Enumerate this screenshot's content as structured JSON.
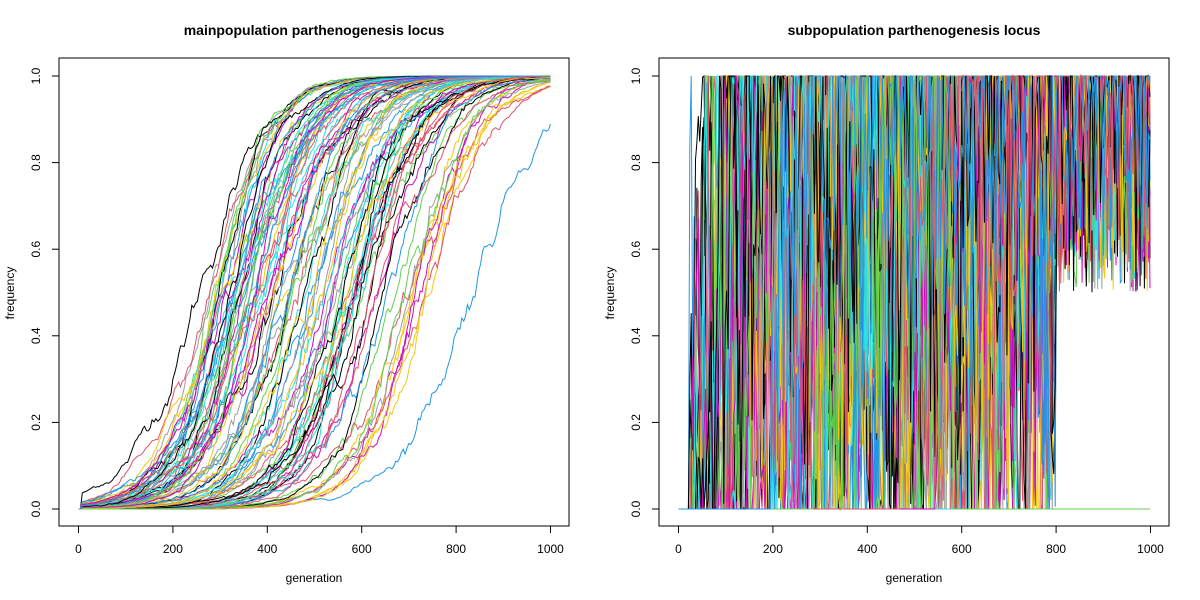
{
  "colors": [
    "#000000",
    "#DF536B",
    "#61D04F",
    "#2297E6",
    "#28E2E5",
    "#CD0BBC",
    "#F5C710",
    "#9E9E9E"
  ],
  "chart_data": [
    {
      "type": "line",
      "title": "mainpopulation parthenogenesis locus",
      "xlabel": "generation",
      "ylabel": "frequency",
      "xlim": [
        0,
        1000
      ],
      "ylim": [
        0.0,
        1.0
      ],
      "xticks": [
        "0",
        "200",
        "400",
        "600",
        "800",
        "1000"
      ],
      "yticks": [
        "0.0",
        "0.2",
        "0.4",
        "0.6",
        "0.8",
        "1.0"
      ],
      "grid": false,
      "legend": "none",
      "n_series": 100,
      "series_model": "logistic sweep from 0 to 1, midpoints spread between ~250 and ~900",
      "series": [
        {
          "x": [
            0,
            100,
            200,
            250,
            300,
            400,
            500,
            600,
            700,
            800,
            1000
          ],
          "values": [
            0.0,
            0.02,
            0.25,
            0.5,
            0.72,
            0.95,
            0.99,
            1.0,
            1.0,
            1.0,
            1.0
          ]
        },
        {
          "x": [
            0,
            100,
            200,
            300,
            400,
            450,
            500,
            600,
            700,
            800,
            1000
          ],
          "values": [
            0.0,
            0.01,
            0.05,
            0.2,
            0.5,
            0.7,
            0.85,
            0.97,
            0.99,
            1.0,
            1.0
          ]
        },
        {
          "x": [
            0,
            200,
            300,
            400,
            500,
            600,
            700,
            800,
            900,
            1000
          ],
          "values": [
            0.0,
            0.02,
            0.07,
            0.2,
            0.45,
            0.7,
            0.88,
            0.95,
            0.98,
            0.99
          ]
        },
        {
          "x": [
            0,
            200,
            400,
            500,
            600,
            700,
            800,
            900,
            1000
          ],
          "values": [
            0.0,
            0.01,
            0.06,
            0.1,
            0.15,
            0.22,
            0.45,
            0.75,
            0.92
          ]
        }
      ]
    },
    {
      "type": "line",
      "title": "subpopulation parthenogenesis locus",
      "xlabel": "generation",
      "ylabel": "frequency",
      "xlim": [
        0,
        1000
      ],
      "ylim": [
        0.0,
        1.0
      ],
      "xticks": [
        "0",
        "200",
        "400",
        "600",
        "800",
        "1000"
      ],
      "yticks": [
        "0.0",
        "0.2",
        "0.4",
        "0.6",
        "0.8",
        "1.0"
      ],
      "grid": false,
      "legend": "none",
      "n_series": 100,
      "series_model": "highly noisy trajectories oscillating between 0 and 1 after onset at ~30-700; lost lineages end at 0 around 560-690",
      "series": [
        {
          "x": [
            0,
            30,
            60,
            100,
            200,
            400,
            600,
            800,
            1000
          ],
          "values": [
            0.0,
            0.02,
            0.9,
            0.85,
            0.7,
            0.5,
            0.6,
            0.9,
            0.95
          ]
        },
        {
          "x": [
            0,
            100,
            200,
            400,
            560,
            600,
            680
          ],
          "values": [
            0.0,
            0.5,
            0.8,
            0.3,
            0.0,
            0.0,
            0.0
          ]
        },
        {
          "x": [
            0,
            700,
            800,
            900,
            1000
          ],
          "values": [
            0.0,
            0.35,
            0.8,
            0.9,
            0.6
          ]
        }
      ]
    }
  ]
}
